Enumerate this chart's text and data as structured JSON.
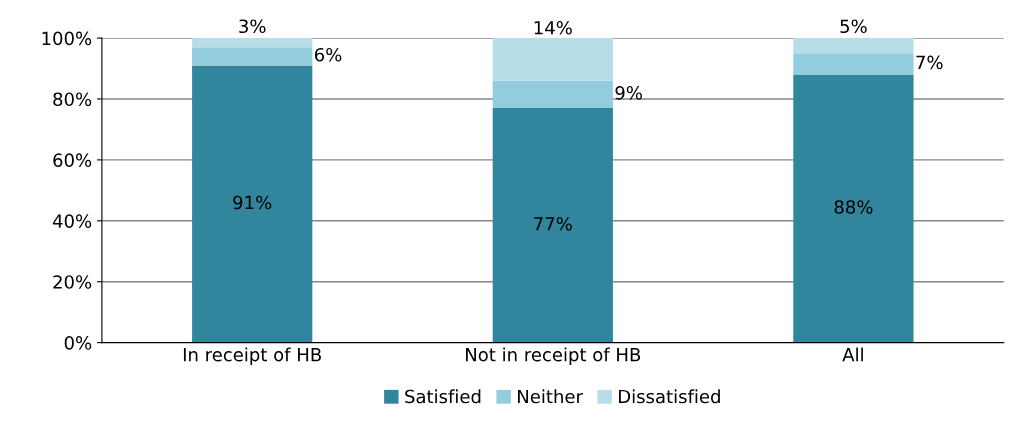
{
  "chart_data": {
    "type": "bar",
    "stacked": true,
    "categories": [
      "In receipt of HB",
      "Not in receipt of HB",
      "All"
    ],
    "series": [
      {
        "name": "Satisfied",
        "color": "#31859c",
        "values": [
          91,
          77,
          88
        ],
        "value_labels": [
          "91%",
          "77%",
          "88%"
        ]
      },
      {
        "name": "Neither",
        "color": "#93cddd",
        "values": [
          6,
          9,
          7
        ],
        "value_labels": [
          "6%",
          "9%",
          "7%"
        ]
      },
      {
        "name": "Dissatisfied",
        "color": "#b7dee8",
        "values": [
          3,
          14,
          5
        ],
        "value_labels": [
          "3%",
          "14%",
          "5%"
        ]
      }
    ],
    "ylim": [
      0,
      100
    ],
    "yticks": [
      {
        "value": 0,
        "label": "0%"
      },
      {
        "value": 20,
        "label": "20%"
      },
      {
        "value": 40,
        "label": "40%"
      },
      {
        "value": 60,
        "label": "60%"
      },
      {
        "value": 80,
        "label": "80%"
      },
      {
        "value": 100,
        "label": "100%"
      }
    ],
    "grid": "y",
    "legend": "bottom"
  }
}
